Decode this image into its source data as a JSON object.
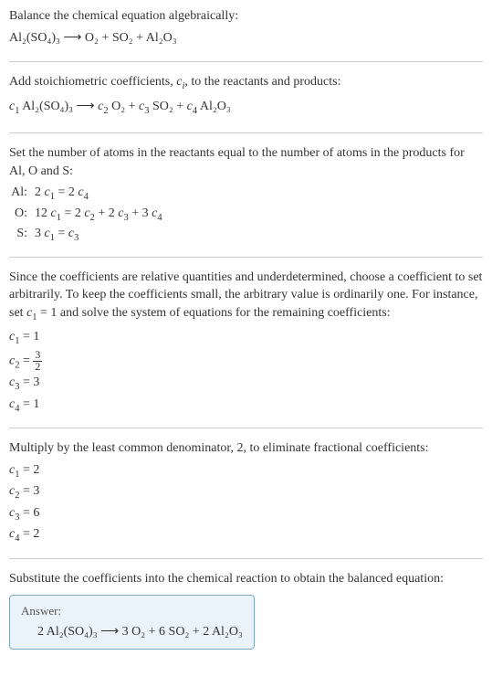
{
  "section1": {
    "line1": "Balance the chemical equation algebraically:",
    "eq": "Al₂(SO₄)₃  ⟶  O₂ + SO₂ + Al₂O₃"
  },
  "section2": {
    "line1_a": "Add stoichiometric coefficients, ",
    "line1_b": "c",
    "line1_c": "i",
    "line1_d": ", to the reactants and products:",
    "eq_c1": "c",
    "eq_1": "1",
    "eq_al": " Al₂(SO₄)₃  ⟶  ",
    "eq_c2": "c",
    "eq_2": "2",
    "eq_o2": " O₂ + ",
    "eq_c3": "c",
    "eq_3": "3",
    "eq_so2": " SO₂ + ",
    "eq_c4": "c",
    "eq_4": "4",
    "eq_al2o3": " Al₂O₃"
  },
  "section3": {
    "line1": "Set the number of atoms in the reactants equal to the number of atoms in the products for Al, O and S:",
    "rows": {
      "al_label": "Al:",
      "al_eq_a": "2 ",
      "al_c1": "c",
      "al_s1": "1",
      "al_mid": " = 2 ",
      "al_c4": "c",
      "al_s4": "4",
      "o_label": "O:",
      "o_a": "12 ",
      "o_c1": "c",
      "o_s1": "1",
      "o_b": " = 2 ",
      "o_c2": "c",
      "o_s2": "2",
      "o_c": " + 2 ",
      "o_c3": "c",
      "o_s3": "3",
      "o_d": " + 3 ",
      "o_c4": "c",
      "o_s4": "4",
      "s_label": "S:",
      "s_a": "3 ",
      "s_c1": "c",
      "s_s1": "1",
      "s_mid": " = ",
      "s_c3": "c",
      "s_s3": "3"
    }
  },
  "section4": {
    "line1_a": "Since the coefficients are relative quantities and underdetermined, choose a coefficient to set arbitrarily. To keep the coefficients small, the arbitrary value is ordinarily one. For instance, set ",
    "line1_c": "c",
    "line1_s": "1",
    "line1_b": " = 1 and solve the system of equations for the remaining coefficients:",
    "c1_c": "c",
    "c1_s": "1",
    "c1_v": " = 1",
    "c2_c": "c",
    "c2_s": "2",
    "c2_eq": " = ",
    "c2_num": "3",
    "c2_den": "2",
    "c3_c": "c",
    "c3_s": "3",
    "c3_v": " = 3",
    "c4_c": "c",
    "c4_s": "4",
    "c4_v": " = 1"
  },
  "section5": {
    "line1": "Multiply by the least common denominator, 2, to eliminate fractional coefficients:",
    "c1_c": "c",
    "c1_s": "1",
    "c1_v": " = 2",
    "c2_c": "c",
    "c2_s": "2",
    "c2_v": " = 3",
    "c3_c": "c",
    "c3_s": "3",
    "c3_v": " = 6",
    "c4_c": "c",
    "c4_s": "4",
    "c4_v": " = 2"
  },
  "section6": {
    "line1": "Substitute the coefficients into the chemical reaction to obtain the balanced equation:",
    "answer_label": "Answer:",
    "answer_eq": "2 Al₂(SO₄)₃  ⟶  3 O₂ + 6 SO₂ + 2 Al₂O₃"
  }
}
